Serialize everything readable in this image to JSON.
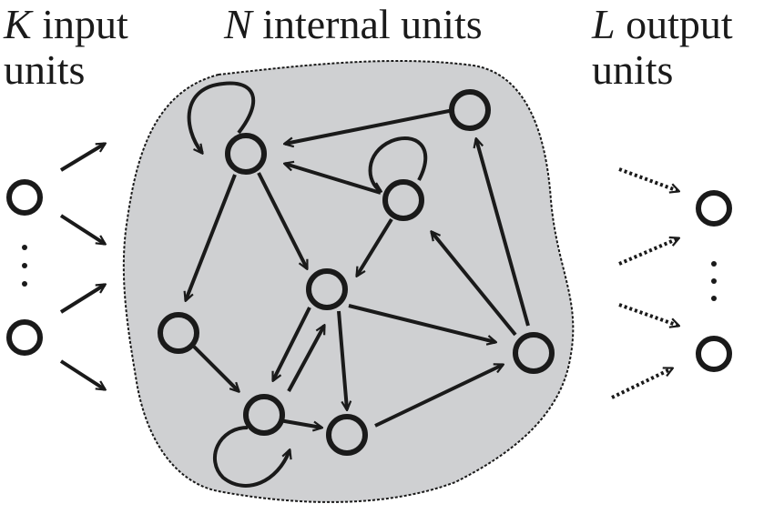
{
  "labels": {
    "input": {
      "var": "K",
      "line1": " input",
      "line2": "units"
    },
    "internal": {
      "var": "N",
      "line1": " internal units"
    },
    "output": {
      "var": "L",
      "line1": " output",
      "line2": "units"
    }
  },
  "colors": {
    "reservoir_fill": "#cfd0d2",
    "stroke": "#1a1a1a"
  },
  "ellipsis": "⋮"
}
